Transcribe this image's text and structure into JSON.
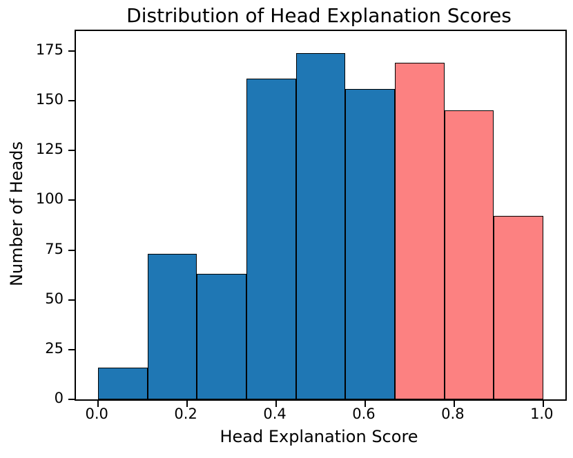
{
  "chart_data": {
    "type": "bar",
    "subtype": "histogram",
    "title": "Distribution of Head Explanation Scores",
    "xlabel": "Head Explanation Score",
    "ylabel": "Number of Heads",
    "bin_edges": [
      0.0,
      0.1111,
      0.2222,
      0.3333,
      0.4444,
      0.5556,
      0.6667,
      0.7778,
      0.8889,
      1.0
    ],
    "values": [
      16,
      73,
      63,
      161,
      174,
      156,
      169,
      145,
      92
    ],
    "bar_colors": [
      "#1f77b4",
      "#1f77b4",
      "#1f77b4",
      "#1f77b4",
      "#1f77b4",
      "#1f77b4",
      "#fc8181",
      "#fc8181",
      "#fc8181"
    ],
    "edge_color": "#000000",
    "x_ticks": [
      {
        "v": 0.0,
        "label": "0.0"
      },
      {
        "v": 0.2,
        "label": "0.2"
      },
      {
        "v": 0.4,
        "label": "0.4"
      },
      {
        "v": 0.6,
        "label": "0.6"
      },
      {
        "v": 0.8,
        "label": "0.8"
      },
      {
        "v": 1.0,
        "label": "1.0"
      }
    ],
    "y_ticks": [
      0,
      25,
      50,
      75,
      100,
      125,
      150,
      175
    ],
    "xlim": [
      -0.05,
      1.05
    ],
    "ylim": [
      0,
      185
    ],
    "grid": false,
    "legend": null
  }
}
